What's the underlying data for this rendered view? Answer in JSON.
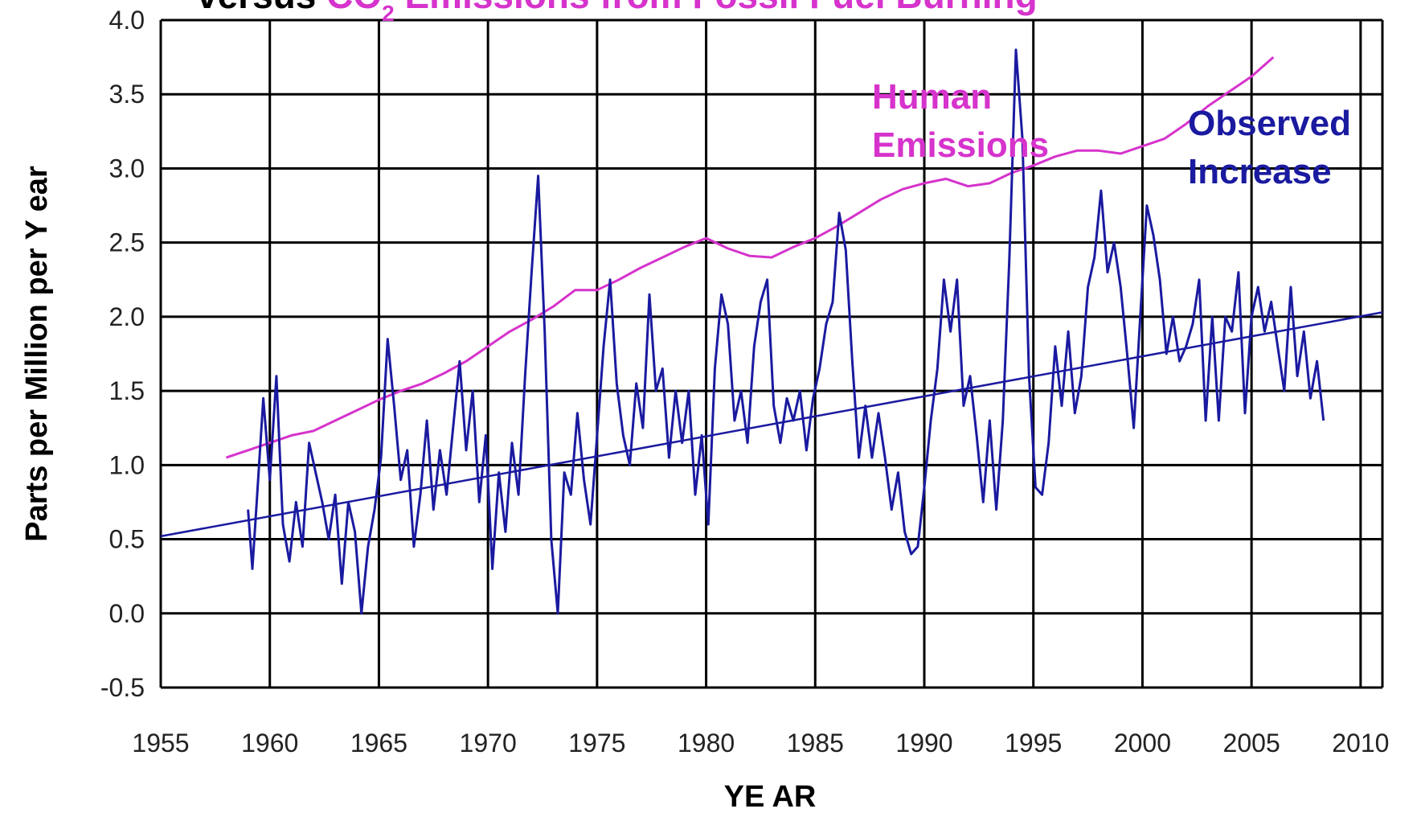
{
  "chart_data": {
    "type": "line",
    "title_prefix": "versus ",
    "title_highlight": "CO",
    "title_subscript": "2",
    "title_rest": " Emissions from Fossil Fuel Burning",
    "xlabel": "YE AR",
    "ylabel": "Parts per Million per Y ear",
    "xlim": [
      1955,
      2011
    ],
    "ylim": [
      -0.5,
      4.0
    ],
    "x_ticks": [
      "1955",
      "1960",
      "1965",
      "1970",
      "1975",
      "1980",
      "1985",
      "1990",
      "1995",
      "2000",
      "2005",
      "2010"
    ],
    "y_ticks": [
      "-0.5",
      "0.0",
      "0.5",
      "1.0",
      "1.5",
      "2.0",
      "2.5",
      "3.0",
      "3.5",
      "4.0"
    ],
    "grid": true,
    "colors": {
      "emissions": "#d633cc",
      "observed": "#1a1aa0",
      "trend": "#1a1aa0",
      "grid": "#000000"
    },
    "series": [
      {
        "key": "emissions",
        "name_lines": [
          "Human",
          "Emissions"
        ],
        "x": [
          1958,
          1959,
          1960,
          1961,
          1962,
          1963,
          1964,
          1965,
          1966,
          1967,
          1968,
          1969,
          1970,
          1971,
          1972,
          1973,
          1974,
          1975,
          1976,
          1977,
          1978,
          1979,
          1980,
          1981,
          1982,
          1983,
          1984,
          1985,
          1986,
          1987,
          1988,
          1989,
          1990,
          1991,
          1992,
          1993,
          1994,
          1995,
          1996,
          1997,
          1998,
          1999,
          2000,
          2001,
          2002,
          2003,
          2004,
          2005,
          2006
        ],
        "y": [
          1.05,
          1.1,
          1.15,
          1.2,
          1.23,
          1.3,
          1.37,
          1.44,
          1.5,
          1.55,
          1.62,
          1.7,
          1.8,
          1.9,
          1.98,
          2.07,
          2.18,
          2.18,
          2.25,
          2.33,
          2.4,
          2.47,
          2.53,
          2.46,
          2.41,
          2.4,
          2.47,
          2.53,
          2.61,
          2.7,
          2.79,
          2.86,
          2.9,
          2.93,
          2.88,
          2.9,
          2.97,
          3.02,
          3.08,
          3.12,
          3.12,
          3.1,
          3.15,
          3.2,
          3.3,
          3.42,
          3.52,
          3.62,
          3.75
        ]
      },
      {
        "key": "observed",
        "name_lines": [
          "Observed",
          "Increase"
        ],
        "x": [
          1959.0,
          1959.2,
          1959.4,
          1959.7,
          1960.0,
          1960.3,
          1960.6,
          1960.9,
          1961.2,
          1961.5,
          1961.8,
          1962.1,
          1962.4,
          1962.7,
          1963.0,
          1963.3,
          1963.6,
          1963.9,
          1964.2,
          1964.5,
          1964.8,
          1965.1,
          1965.4,
          1965.7,
          1966.0,
          1966.3,
          1966.6,
          1966.9,
          1967.2,
          1967.5,
          1967.8,
          1968.1,
          1968.4,
          1968.7,
          1969.0,
          1969.3,
          1969.6,
          1969.9,
          1970.2,
          1970.5,
          1970.8,
          1971.1,
          1971.4,
          1971.7,
          1972.0,
          1972.3,
          1972.6,
          1972.9,
          1973.2,
          1973.5,
          1973.8,
          1974.1,
          1974.4,
          1974.7,
          1975.0,
          1975.3,
          1975.6,
          1975.9,
          1976.2,
          1976.5,
          1976.8,
          1977.1,
          1977.4,
          1977.7,
          1978.0,
          1978.3,
          1978.6,
          1978.9,
          1979.2,
          1979.5,
          1979.8,
          1980.1,
          1980.4,
          1980.7,
          1981.0,
          1981.3,
          1981.6,
          1981.9,
          1982.2,
          1982.5,
          1982.8,
          1983.1,
          1983.4,
          1983.7,
          1984.0,
          1984.3,
          1984.6,
          1984.9,
          1985.2,
          1985.5,
          1985.8,
          1986.1,
          1986.4,
          1986.7,
          1987.0,
          1987.3,
          1987.6,
          1987.9,
          1988.2,
          1988.5,
          1988.8,
          1989.1,
          1989.4,
          1989.7,
          1990.0,
          1990.3,
          1990.6,
          1990.9,
          1991.2,
          1991.5,
          1991.8,
          1992.1,
          1992.4,
          1992.7,
          1993.0,
          1993.3,
          1993.6,
          1993.9,
          1994.2,
          1994.5,
          1994.8,
          1995.1,
          1995.4,
          1995.7,
          1996.0,
          1996.3,
          1996.6,
          1996.9,
          1997.2,
          1997.5,
          1997.8,
          1998.1,
          1998.4,
          1998.7,
          1999.0,
          1999.3,
          1999.6,
          1999.9,
          2000.2,
          2000.5,
          2000.8,
          2001.1,
          2001.4,
          2001.7,
          2002.0,
          2002.3,
          2002.6,
          2002.9,
          2003.2,
          2003.5,
          2003.8,
          2004.1,
          2004.4,
          2004.7,
          2005.0,
          2005.3,
          2005.6,
          2005.9,
          2006.2,
          2006.5,
          2006.8,
          2007.1,
          2007.4,
          2007.7,
          2008.0,
          2008.3
        ],
        "y": [
          0.7,
          0.3,
          0.75,
          1.45,
          0.9,
          1.6,
          0.6,
          0.35,
          0.75,
          0.45,
          1.15,
          0.95,
          0.75,
          0.5,
          0.8,
          0.2,
          0.75,
          0.55,
          0.0,
          0.45,
          0.7,
          1.05,
          1.85,
          1.4,
          0.9,
          1.1,
          0.45,
          0.8,
          1.3,
          0.7,
          1.1,
          0.8,
          1.25,
          1.7,
          1.1,
          1.5,
          0.75,
          1.2,
          0.3,
          0.95,
          0.55,
          1.15,
          0.8,
          1.6,
          2.3,
          2.95,
          1.9,
          0.5,
          0.0,
          0.95,
          0.8,
          1.35,
          0.9,
          0.6,
          1.2,
          1.8,
          2.25,
          1.55,
          1.2,
          1.0,
          1.55,
          1.25,
          2.15,
          1.5,
          1.65,
          1.05,
          1.5,
          1.15,
          1.5,
          0.8,
          1.2,
          0.6,
          1.65,
          2.15,
          1.95,
          1.3,
          1.5,
          1.15,
          1.8,
          2.1,
          2.25,
          1.4,
          1.15,
          1.45,
          1.3,
          1.5,
          1.1,
          1.45,
          1.65,
          1.95,
          2.1,
          2.7,
          2.45,
          1.7,
          1.05,
          1.4,
          1.05,
          1.35,
          1.05,
          0.7,
          0.95,
          0.55,
          0.4,
          0.45,
          0.85,
          1.3,
          1.65,
          2.25,
          1.9,
          2.25,
          1.4,
          1.6,
          1.2,
          0.75,
          1.3,
          0.7,
          1.3,
          2.4,
          3.8,
          3.2,
          1.6,
          0.85,
          0.8,
          1.15,
          1.8,
          1.4,
          1.9,
          1.35,
          1.6,
          2.2,
          2.4,
          2.85,
          2.3,
          2.5,
          2.2,
          1.75,
          1.25,
          2.0,
          2.75,
          2.55,
          2.25,
          1.75,
          2.0,
          1.7,
          1.8,
          1.95,
          2.25,
          1.3,
          2.0,
          1.3,
          2.0,
          1.9,
          2.3,
          1.35,
          2.0,
          2.2,
          1.9,
          2.1,
          1.8,
          1.5,
          2.2,
          1.6,
          1.9,
          1.45,
          1.7,
          1.3
        ]
      },
      {
        "key": "trend",
        "x": [
          1955,
          2011
        ],
        "y": [
          0.52,
          2.03
        ]
      }
    ]
  }
}
